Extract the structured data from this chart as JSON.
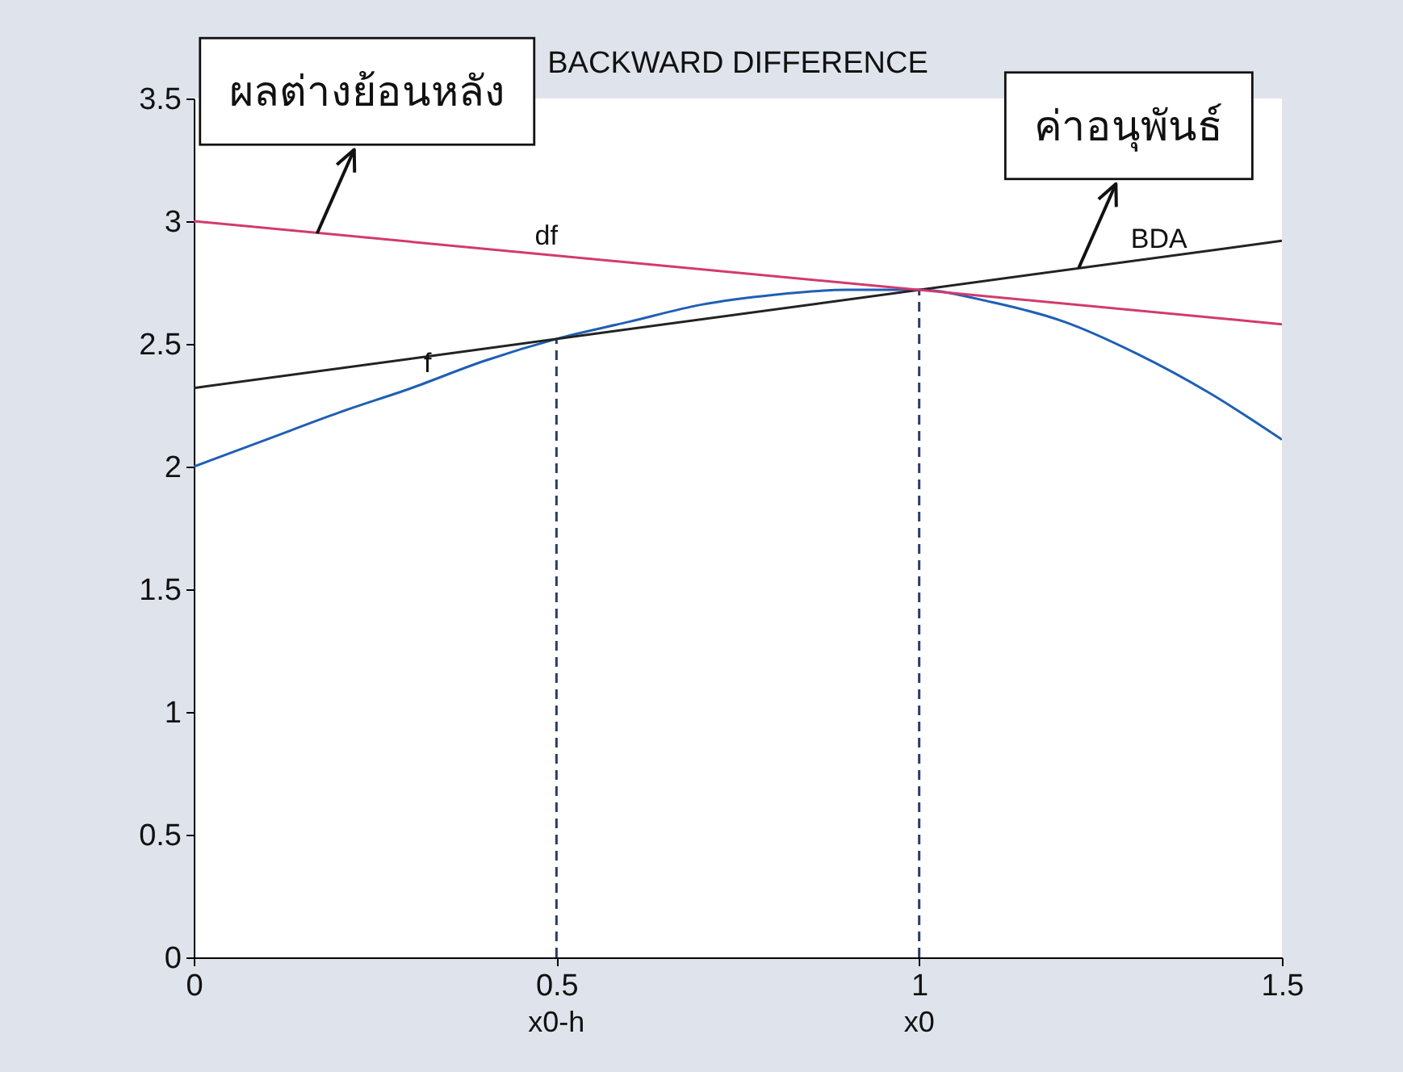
{
  "chart_data": {
    "type": "line",
    "title": "BACKWARD DIFFERENCE",
    "xlim": [
      0,
      1.5
    ],
    "xticks": [
      0,
      0.5,
      1,
      1.5
    ],
    "ylim": [
      0,
      3.5
    ],
    "yticks": [
      0,
      0.5,
      1,
      1.5,
      2,
      2.5,
      3,
      3.5
    ],
    "grid": false,
    "annotations": [
      {
        "text": "ผลต่างย้อนหลัง",
        "x": 0.17,
        "y": 2.95
      },
      {
        "text": "ค่าอนุพันธ์",
        "x": 1.22,
        "y": 2.81
      },
      {
        "text": "x0-h",
        "x": 0.5,
        "y": 0
      },
      {
        "text": "x0",
        "x": 1,
        "y": 0
      }
    ],
    "ref_lines": [
      {
        "axis": "x",
        "value": 0.5,
        "color": "#2b3b6b",
        "line_style": "dashed"
      },
      {
        "axis": "x",
        "value": 1,
        "color": "#2b3b6b",
        "line_style": "dashed"
      }
    ],
    "series": [
      {
        "name": "f",
        "color": "#1f5fb4",
        "x": [
          0,
          0.1,
          0.2,
          0.3,
          0.4,
          0.5,
          0.6,
          0.7,
          0.8,
          0.9,
          1,
          1.1,
          1.2,
          1.3,
          1.4,
          1.5
        ],
        "values": [
          2.0,
          2.11,
          2.22,
          2.32,
          2.43,
          2.52,
          2.59,
          2.66,
          2.7,
          2.72,
          2.72,
          2.67,
          2.59,
          2.46,
          2.3,
          2.11
        ]
      },
      {
        "name": "BDA",
        "color": "#222222",
        "x": [
          0,
          1.5
        ],
        "values": [
          2.32,
          2.92
        ]
      },
      {
        "name": "df",
        "color": "#d23a6e",
        "x": [
          0,
          1.5
        ],
        "values": [
          3.0,
          2.58
        ]
      }
    ]
  }
}
